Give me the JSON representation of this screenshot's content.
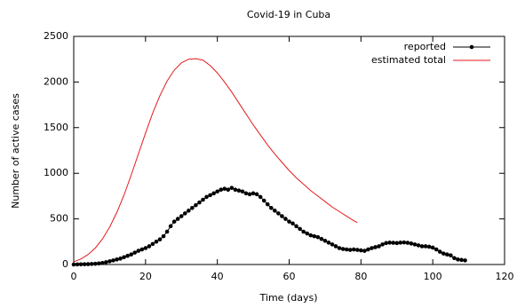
{
  "chart_data": {
    "type": "line",
    "title": "Covid-19 in Cuba",
    "x_label": "Time (days)",
    "y_label": "Number of active cases",
    "xlim": [
      0,
      120
    ],
    "xticks": [
      0,
      20,
      40,
      60,
      80,
      100,
      120
    ],
    "ylim": [
      0,
      2500
    ],
    "yticks": [
      0,
      500,
      1000,
      1500,
      2000,
      2500
    ],
    "legend": "top-right",
    "series": [
      {
        "name": "reported",
        "color": "#000000",
        "markers": true,
        "x": [
          0,
          1,
          2,
          3,
          4,
          5,
          6,
          7,
          8,
          9,
          10,
          11,
          12,
          13,
          14,
          15,
          16,
          17,
          18,
          19,
          20,
          21,
          22,
          23,
          24,
          25,
          26,
          27,
          28,
          29,
          30,
          31,
          32,
          33,
          34,
          35,
          36,
          37,
          38,
          39,
          40,
          41,
          42,
          43,
          44,
          45,
          46,
          47,
          48,
          49,
          50,
          51,
          52,
          53,
          54,
          55,
          56,
          57,
          58,
          59,
          60,
          61,
          62,
          63,
          64,
          65,
          66,
          67,
          68,
          69,
          70,
          71,
          72,
          73,
          74,
          75,
          76,
          77,
          78,
          79,
          80,
          81,
          82,
          83,
          84,
          85,
          86,
          87,
          88,
          89,
          90,
          91,
          92,
          93,
          94,
          95,
          96,
          97,
          98,
          99,
          100,
          101,
          102,
          103,
          104,
          105,
          106,
          107,
          108,
          109
        ],
        "values": [
          0,
          1,
          2,
          3,
          4,
          6,
          8,
          12,
          17,
          25,
          35,
          45,
          55,
          65,
          80,
          95,
          110,
          130,
          150,
          165,
          180,
          200,
          225,
          250,
          275,
          310,
          360,
          420,
          470,
          500,
          530,
          560,
          590,
          620,
          650,
          680,
          710,
          740,
          760,
          780,
          800,
          820,
          830,
          820,
          840,
          820,
          810,
          800,
          780,
          770,
          780,
          770,
          740,
          700,
          660,
          620,
          590,
          560,
          530,
          500,
          470,
          450,
          420,
          390,
          360,
          340,
          320,
          310,
          300,
          280,
          260,
          240,
          220,
          200,
          180,
          170,
          165,
          160,
          165,
          160,
          155,
          150,
          165,
          180,
          190,
          200,
          220,
          235,
          240,
          238,
          235,
          240,
          242,
          238,
          230,
          220,
          210,
          200,
          200,
          195,
          185,
          165,
          140,
          120,
          110,
          100,
          70,
          55,
          50,
          45
        ]
      },
      {
        "name": "estimated total",
        "color": "#e41a1c",
        "markers": false,
        "x": [
          0,
          2,
          4,
          6,
          8,
          10,
          12,
          14,
          16,
          18,
          20,
          22,
          24,
          26,
          28,
          30,
          32,
          34,
          36,
          38,
          40,
          42,
          44,
          46,
          48,
          50,
          52,
          54,
          56,
          58,
          60,
          62,
          64,
          66,
          68,
          70,
          72,
          74,
          76,
          78,
          79
        ],
        "values": [
          30,
          60,
          110,
          180,
          280,
          410,
          570,
          760,
          980,
          1210,
          1440,
          1660,
          1850,
          2010,
          2130,
          2210,
          2250,
          2255,
          2240,
          2180,
          2100,
          2000,
          1890,
          1770,
          1650,
          1530,
          1420,
          1310,
          1210,
          1120,
          1030,
          950,
          880,
          810,
          750,
          690,
          630,
          580,
          530,
          480,
          460
        ]
      }
    ]
  }
}
